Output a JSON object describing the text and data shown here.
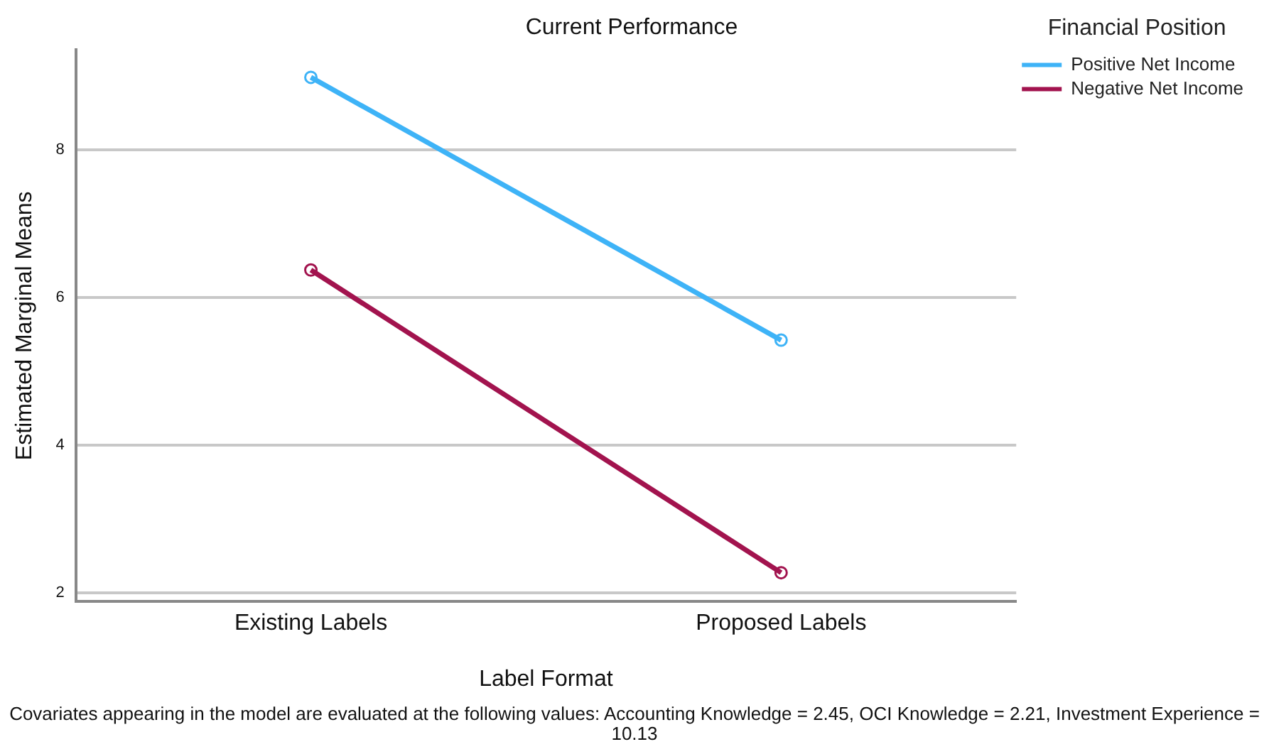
{
  "chart_data": {
    "type": "line",
    "title": "Current Performance",
    "xlabel": "Label Format",
    "ylabel": "Estimated Marginal Means",
    "legend_title": "Financial Position",
    "categories": [
      "Existing Labels",
      "Proposed Labels"
    ],
    "series": [
      {
        "name": "Positive Net Income",
        "color": "#3eb3f7",
        "values": [
          8.98,
          5.42
        ]
      },
      {
        "name": "Negative Net Income",
        "color": "#a2134e",
        "values": [
          6.37,
          2.27
        ]
      }
    ],
    "ylim": [
      1.88,
      9.35
    ],
    "yticks": [
      2,
      4,
      6,
      8
    ],
    "grid": "y",
    "legend": "top right",
    "marker": "circle",
    "line_style": "solid",
    "annotations": [
      "Covariates appearing in the model are evaluated at the following values: Accounting Knowledge = 2.45, OCI Knowledge = 2.21, Investment Experience = 10.13"
    ]
  }
}
